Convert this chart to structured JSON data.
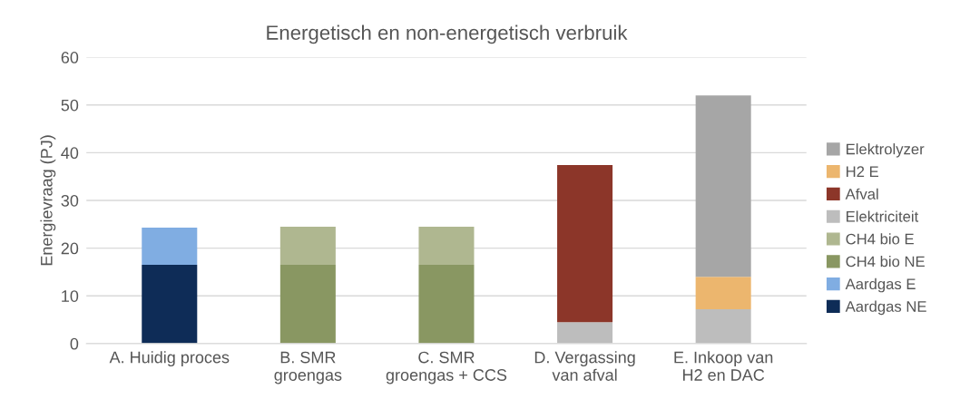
{
  "chart_data": {
    "type": "bar",
    "stacked": true,
    "title": "Energetisch en non-energetisch verbruik",
    "ylabel": "Energievraag (PJ)",
    "categories": [
      "A. Huidig proces",
      "B. SMR\ngroengas",
      "C. SMR\ngroengas + CCS",
      "D. Vergassing\nvan afval",
      "E. Inkoop van\nH2 en DAC"
    ],
    "series": [
      {
        "name": "Aardgas NE",
        "color": "#0e2c57",
        "values": [
          16.5,
          null,
          null,
          null,
          null
        ]
      },
      {
        "name": "Aardgas E",
        "color": "#80ade2",
        "values": [
          7.8,
          null,
          null,
          null,
          null
        ]
      },
      {
        "name": "CH4 bio NE",
        "color": "#899762",
        "values": [
          null,
          16.5,
          16.5,
          null,
          null
        ]
      },
      {
        "name": "CH4 bio E",
        "color": "#afb790",
        "values": [
          null,
          8.0,
          8.0,
          null,
          null
        ]
      },
      {
        "name": "Elektriciteit",
        "color": "#bdbdbd",
        "values": [
          null,
          null,
          null,
          4.5,
          7.2
        ]
      },
      {
        "name": "Afval",
        "color": "#8c3629",
        "values": [
          null,
          null,
          null,
          32.9,
          null
        ]
      },
      {
        "name": "H2 E",
        "color": "#ecb66e",
        "values": [
          null,
          null,
          null,
          null,
          6.8
        ]
      },
      {
        "name": "Elektrolyzer",
        "color": "#a6a6a6",
        "values": [
          null,
          null,
          null,
          null,
          38.0
        ]
      }
    ],
    "ylim": [
      0,
      60
    ],
    "yticks": [
      0,
      10,
      20,
      30,
      40,
      50,
      60
    ],
    "grid": "y",
    "legend": "right"
  }
}
